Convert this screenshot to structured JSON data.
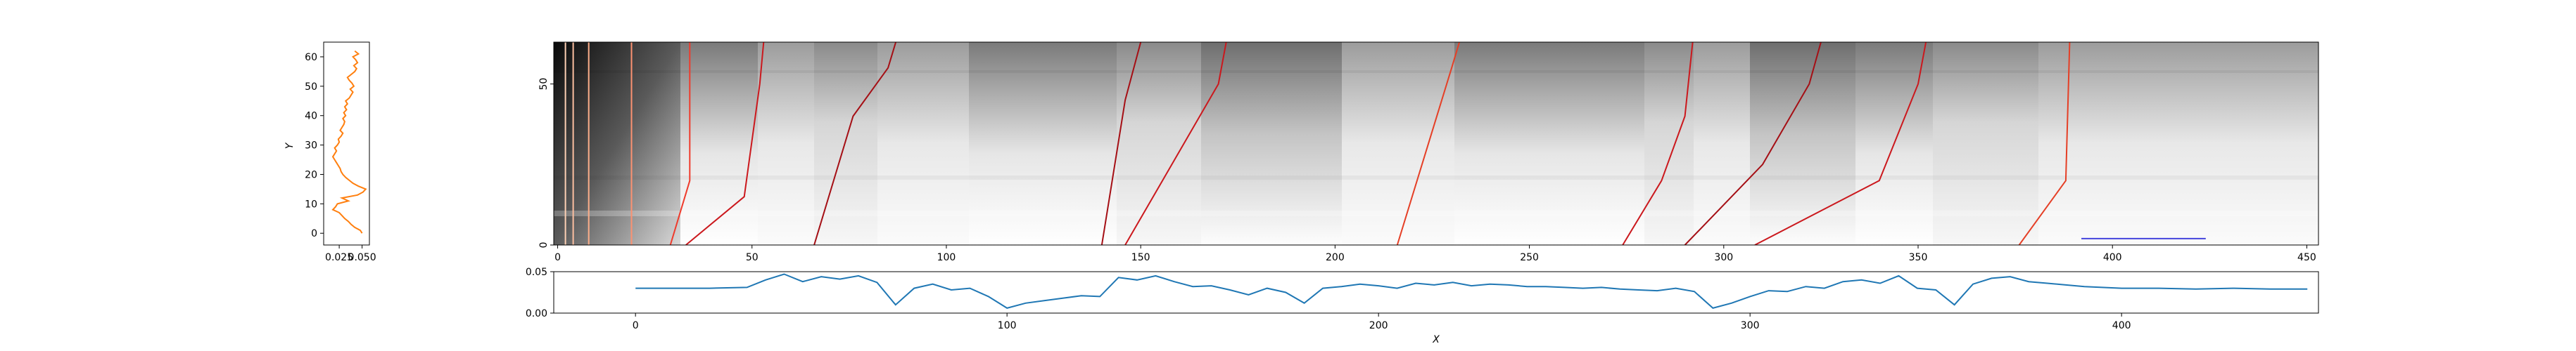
{
  "chart_data": [
    {
      "id": "left_profile",
      "type": "line",
      "title": "",
      "xlabel": "",
      "ylabel": "Y",
      "xlim": [
        0.008,
        0.058
      ],
      "ylim": [
        -4,
        65
      ],
      "xticks": [
        0.025,
        0.05
      ],
      "xtick_labels": [
        "0.025",
        "0.050"
      ],
      "yticks": [
        0,
        10,
        20,
        30,
        40,
        50,
        60
      ],
      "ytick_labels": [
        "0",
        "10",
        "20",
        "30",
        "40",
        "50",
        "60"
      ],
      "color": "#ff7f0e",
      "series": [
        {
          "x": [
            0.05,
            0.048,
            0.042,
            0.038,
            0.035,
            0.031,
            0.028,
            0.025,
            0.018,
            0.021,
            0.023,
            0.035,
            0.028,
            0.045,
            0.051,
            0.054,
            0.046,
            0.04,
            0.036,
            0.032,
            0.029,
            0.027,
            0.026,
            0.024,
            0.022,
            0.02,
            0.018,
            0.02,
            0.022,
            0.02,
            0.023,
            0.025,
            0.024,
            0.027,
            0.029,
            0.026,
            0.028,
            0.03,
            0.031,
            0.029,
            0.032,
            0.03,
            0.033,
            0.031,
            0.034,
            0.032,
            0.036,
            0.038,
            0.04,
            0.037,
            0.041,
            0.039,
            0.036,
            0.034,
            0.038,
            0.042,
            0.044,
            0.041,
            0.045,
            0.043,
            0.04,
            0.046,
            0.042
          ],
          "y": [
            0,
            1,
            2,
            3,
            4,
            5,
            6,
            7,
            8,
            9,
            10,
            11,
            12,
            13,
            14,
            15,
            16,
            17,
            18,
            19,
            20,
            21,
            22,
            23,
            24,
            25,
            26,
            27,
            28,
            29,
            30,
            31,
            32,
            33,
            34,
            35,
            36,
            37,
            38,
            39,
            40,
            41,
            42,
            43,
            44,
            45,
            46,
            47,
            48,
            49,
            50,
            51,
            52,
            53,
            54,
            55,
            56,
            57,
            58,
            59,
            60,
            61,
            62
          ]
        }
      ]
    },
    {
      "id": "heatmap",
      "type": "heatmap",
      "title": "",
      "xlabel": "",
      "ylabel": "",
      "xlim": [
        -1,
        453
      ],
      "ylim": [
        0,
        63
      ],
      "xticks": [
        0,
        50,
        100,
        150,
        200,
        250,
        300,
        350,
        400,
        450
      ],
      "xtick_labels": [
        "0",
        "50",
        "100",
        "150",
        "200",
        "250",
        "300",
        "350",
        "400",
        "450"
      ],
      "yticks": [
        0,
        50
      ],
      "ytick_labels": [
        "0",
        "50"
      ],
      "colormap": "Greys",
      "paths": [
        {
          "color": "#fdd0b4",
          "points": [
            [
              2,
              0
            ],
            [
              2,
              63
            ]
          ]
        },
        {
          "color": "#fcbfa0",
          "points": [
            [
              4,
              0
            ],
            [
              4,
              63
            ]
          ]
        },
        {
          "color": "#fcae8a",
          "points": [
            [
              8,
              0
            ],
            [
              8,
              63
            ]
          ]
        },
        {
          "color": "#fc9272",
          "points": [
            [
              19,
              0
            ],
            [
              19,
              63
            ]
          ]
        },
        {
          "color": "#ef3b2c",
          "points": [
            [
              29,
              0
            ],
            [
              34,
              20
            ],
            [
              34,
              63
            ]
          ]
        },
        {
          "color": "#cb181d",
          "points": [
            [
              33,
              0
            ],
            [
              48,
              15
            ],
            [
              52,
              50
            ],
            [
              53,
              63
            ]
          ]
        },
        {
          "color": "#a50f15",
          "points": [
            [
              66,
              0
            ],
            [
              76,
              40
            ],
            [
              85,
              55
            ],
            [
              87,
              63
            ]
          ]
        },
        {
          "color": "#a50f15",
          "points": [
            [
              140,
              0
            ],
            [
              146,
              45
            ],
            [
              150,
              63
            ]
          ]
        },
        {
          "color": "#cb181d",
          "points": [
            [
              146,
              0
            ],
            [
              158,
              25
            ],
            [
              170,
              50
            ],
            [
              172,
              63
            ]
          ]
        },
        {
          "color": "#e53f26",
          "points": [
            [
              216,
              0
            ],
            [
              230,
              55
            ],
            [
              232,
              63
            ]
          ]
        },
        {
          "color": "#cb181d",
          "points": [
            [
              274,
              0
            ],
            [
              284,
              20
            ],
            [
              290,
              40
            ],
            [
              292,
              63
            ]
          ]
        },
        {
          "color": "#a50f15",
          "points": [
            [
              290,
              0
            ],
            [
              310,
              25
            ],
            [
              322,
              50
            ],
            [
              325,
              63
            ]
          ]
        },
        {
          "color": "#cb181d",
          "points": [
            [
              308,
              0
            ],
            [
              340,
              20
            ],
            [
              350,
              50
            ],
            [
              352,
              63
            ]
          ]
        },
        {
          "color": "#e53f26",
          "points": [
            [
              376,
              0
            ],
            [
              388,
              20
            ],
            [
              389,
              63
            ]
          ]
        }
      ],
      "marker_segment": {
        "x": [
          392,
          424
        ],
        "y": 2,
        "color": "#4444dd"
      }
    },
    {
      "id": "bottom_profile",
      "type": "line",
      "title": "",
      "xlabel": "X",
      "ylabel": "",
      "xlim": [
        -22,
        453
      ],
      "ylim": [
        0,
        0.05
      ],
      "xticks": [
        0,
        100,
        200,
        300,
        400
      ],
      "xtick_labels": [
        "0",
        "100",
        "200",
        "300",
        "400"
      ],
      "yticks": [
        0,
        0.05
      ],
      "ytick_labels": [
        "0.00",
        "0.05"
      ],
      "color": "#1f77b4",
      "series": [
        {
          "x": [
            0,
            10,
            20,
            30,
            35,
            40,
            45,
            50,
            55,
            60,
            65,
            70,
            75,
            80,
            85,
            90,
            95,
            100,
            105,
            110,
            115,
            120,
            125,
            130,
            135,
            140,
            145,
            150,
            155,
            160,
            165,
            170,
            175,
            180,
            185,
            190,
            195,
            200,
            205,
            210,
            215,
            220,
            225,
            230,
            235,
            240,
            245,
            250,
            255,
            260,
            265,
            270,
            275,
            280,
            285,
            290,
            295,
            300,
            305,
            310,
            315,
            320,
            325,
            330,
            335,
            340,
            345,
            350,
            355,
            360,
            365,
            370,
            375,
            380,
            385,
            390,
            400,
            410,
            420,
            430,
            440,
            450
          ],
          "y": [
            0.03,
            0.03,
            0.03,
            0.031,
            0.04,
            0.047,
            0.038,
            0.044,
            0.041,
            0.045,
            0.037,
            0.01,
            0.03,
            0.035,
            0.028,
            0.03,
            0.02,
            0.006,
            0.012,
            0.015,
            0.018,
            0.021,
            0.02,
            0.043,
            0.04,
            0.045,
            0.038,
            0.032,
            0.033,
            0.028,
            0.022,
            0.03,
            0.025,
            0.012,
            0.03,
            0.032,
            0.035,
            0.033,
            0.03,
            0.036,
            0.034,
            0.037,
            0.033,
            0.035,
            0.034,
            0.032,
            0.032,
            0.031,
            0.03,
            0.031,
            0.029,
            0.028,
            0.027,
            0.03,
            0.026,
            0.006,
            0.012,
            0.02,
            0.027,
            0.026,
            0.032,
            0.03,
            0.038,
            0.04,
            0.036,
            0.045,
            0.03,
            0.028,
            0.01,
            0.035,
            0.042,
            0.044,
            0.038,
            0.036,
            0.034,
            0.032,
            0.03,
            0.03,
            0.029,
            0.03,
            0.029,
            0.029
          ]
        }
      ]
    }
  ]
}
